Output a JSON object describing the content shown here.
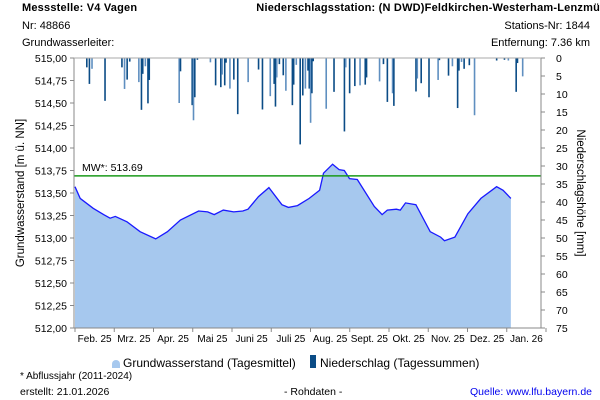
{
  "header": {
    "station": "Messstelle: V4 Vagen",
    "number": "Nr: 48866",
    "aquifer": "Grundwasserleiter:",
    "precip_station": "Niederschlagsstation: (N DWD)Feldkirchen-Westerham-Lenzmü",
    "precip_station_nr": "Stations-Nr: 1844",
    "distance": "Entfernung: 7.36 km"
  },
  "footer": {
    "note": "* Abflussjahr (2011-2024)",
    "created": "erstellt:  21.01.2026",
    "raw": "- Rohdaten -",
    "source": "Quelle: www.lfu.bayern.de"
  },
  "colors": {
    "area": "#a6c8ee",
    "line": "#1a1aff",
    "bars": "#0b4c86",
    "mean": "#1a9a1a",
    "source": "#0000ee"
  },
  "chart_data": {
    "type": "area",
    "ylabel": "Grundwasserstand [m ü. NN]",
    "y2label": "Niederschlagshöhe [mm]",
    "ylim": [
      512.0,
      515.0
    ],
    "y2lim": [
      75,
      0
    ],
    "yticks": [
      "515,00",
      "514,75",
      "514,50",
      "514,25",
      "514,00",
      "513,75",
      "513,50",
      "513,25",
      "513,00",
      "512,75",
      "512,50",
      "512,25",
      "512,00"
    ],
    "y2ticks": [
      "0",
      "5",
      "10",
      "15",
      "20",
      "25",
      "30",
      "35",
      "40",
      "45",
      "50",
      "55",
      "60",
      "65",
      "70",
      "75"
    ],
    "xticks": [
      "Feb. 25",
      "Mrz. 25",
      "Apr. 25",
      "Mai 25",
      "Juni 25",
      "Juli 25",
      "Aug. 25",
      "Sept. 25",
      "Okt. 25",
      "Nov. 25",
      "Dez. 25",
      "Jan. 26"
    ],
    "x_unit": "days since start of axis (~21 Jan 2025)",
    "xlim_days": [
      0,
      362
    ],
    "mean_line": {
      "label": "MW*: 513.69",
      "value": 513.69
    },
    "legend": [
      "Grundwasserstand (Tagesmittel)",
      "Niederschlag (Tagessummen)"
    ],
    "groundwater": [
      [
        0,
        513.57
      ],
      [
        4,
        513.44
      ],
      [
        14,
        513.33
      ],
      [
        22,
        513.26
      ],
      [
        27,
        513.22
      ],
      [
        31,
        513.24
      ],
      [
        40,
        513.18
      ],
      [
        50,
        513.07
      ],
      [
        62,
        512.99
      ],
      [
        71,
        513.07
      ],
      [
        81,
        513.2
      ],
      [
        95,
        513.3
      ],
      [
        102,
        513.29
      ],
      [
        107,
        513.26
      ],
      [
        114,
        513.31
      ],
      [
        122,
        513.29
      ],
      [
        129,
        513.3
      ],
      [
        133,
        513.32
      ],
      [
        141,
        513.46
      ],
      [
        149,
        513.56
      ],
      [
        159,
        513.37
      ],
      [
        164,
        513.34
      ],
      [
        171,
        513.36
      ],
      [
        180,
        513.44
      ],
      [
        188,
        513.53
      ],
      [
        191,
        513.72
      ],
      [
        198,
        513.82
      ],
      [
        203,
        513.76
      ],
      [
        207,
        513.75
      ],
      [
        211,
        513.66
      ],
      [
        217,
        513.65
      ],
      [
        230,
        513.35
      ],
      [
        236,
        513.26
      ],
      [
        240,
        513.31
      ],
      [
        247,
        513.32
      ],
      [
        250,
        513.31
      ],
      [
        254,
        513.39
      ],
      [
        262,
        513.37
      ],
      [
        273,
        513.07
      ],
      [
        281,
        513.01
      ],
      [
        284,
        512.97
      ],
      [
        292,
        513.01
      ],
      [
        302,
        513.27
      ],
      [
        312,
        513.44
      ],
      [
        324,
        513.57
      ],
      [
        329,
        513.53
      ],
      [
        335,
        513.44
      ]
    ],
    "precipitation": [
      [
        9,
        2.6
      ],
      [
        11,
        7.2
      ],
      [
        13,
        3
      ],
      [
        23,
        11.9
      ],
      [
        36,
        2.6
      ],
      [
        38,
        8.6
      ],
      [
        40,
        6
      ],
      [
        42,
        1
      ],
      [
        49,
        6.7
      ],
      [
        51,
        14.4
      ],
      [
        52,
        4.4
      ],
      [
        54,
        2.3
      ],
      [
        56,
        12.6
      ],
      [
        57,
        6.1
      ],
      [
        80,
        12.5
      ],
      [
        81,
        3.7
      ],
      [
        90,
        13.1
      ],
      [
        91,
        17.3
      ],
      [
        92,
        10.9
      ],
      [
        94,
        0.5
      ],
      [
        104,
        1.2
      ],
      [
        108,
        7.6
      ],
      [
        112,
        8.1
      ],
      [
        113,
        4.6
      ],
      [
        115,
        7.6
      ],
      [
        116,
        1.3
      ],
      [
        119,
        8.5
      ],
      [
        122,
        6
      ],
      [
        125,
        15.6
      ],
      [
        133,
        6.7
      ],
      [
        141,
        3.2
      ],
      [
        144,
        14.3
      ],
      [
        150,
        10.6
      ],
      [
        153,
        7.2
      ],
      [
        154,
        13.5
      ],
      [
        155,
        5.4
      ],
      [
        157,
        1.7
      ],
      [
        160,
        4.8
      ],
      [
        162,
        9.1
      ],
      [
        167,
        13.1
      ],
      [
        168,
        7.4
      ],
      [
        170,
        1.9
      ],
      [
        173,
        24
      ],
      [
        175,
        10.4
      ],
      [
        177,
        8.5
      ],
      [
        179,
        3.5
      ],
      [
        180,
        8.5
      ],
      [
        181,
        18
      ],
      [
        182,
        9.8
      ],
      [
        183,
        0.9
      ],
      [
        193,
        14.1
      ],
      [
        199,
        9.4
      ],
      [
        207,
        20.4
      ],
      [
        208,
        2.6
      ],
      [
        211,
        9.8
      ],
      [
        215,
        7.8
      ],
      [
        219,
        7.6
      ],
      [
        223,
        7.4
      ],
      [
        224,
        5.4
      ],
      [
        234,
        6.5
      ],
      [
        237,
        1.7
      ],
      [
        240,
        12.2
      ],
      [
        244,
        9.8
      ],
      [
        245,
        13.3
      ],
      [
        262,
        9.3
      ],
      [
        263,
        5.7
      ],
      [
        266,
        7
      ],
      [
        272,
        10.9
      ],
      [
        279,
        6.1
      ],
      [
        280,
        0.6
      ],
      [
        287,
        4.9
      ],
      [
        290,
        2.3
      ],
      [
        294,
        13.9
      ],
      [
        295,
        3.5
      ],
      [
        297,
        1.1
      ],
      [
        299,
        3
      ],
      [
        303,
        2
      ],
      [
        307,
        15.9
      ],
      [
        324,
        0.7
      ],
      [
        330,
        0.5
      ],
      [
        333,
        0.7
      ],
      [
        339,
        9.4
      ],
      [
        340,
        1.4
      ],
      [
        344,
        5.1
      ]
    ]
  }
}
